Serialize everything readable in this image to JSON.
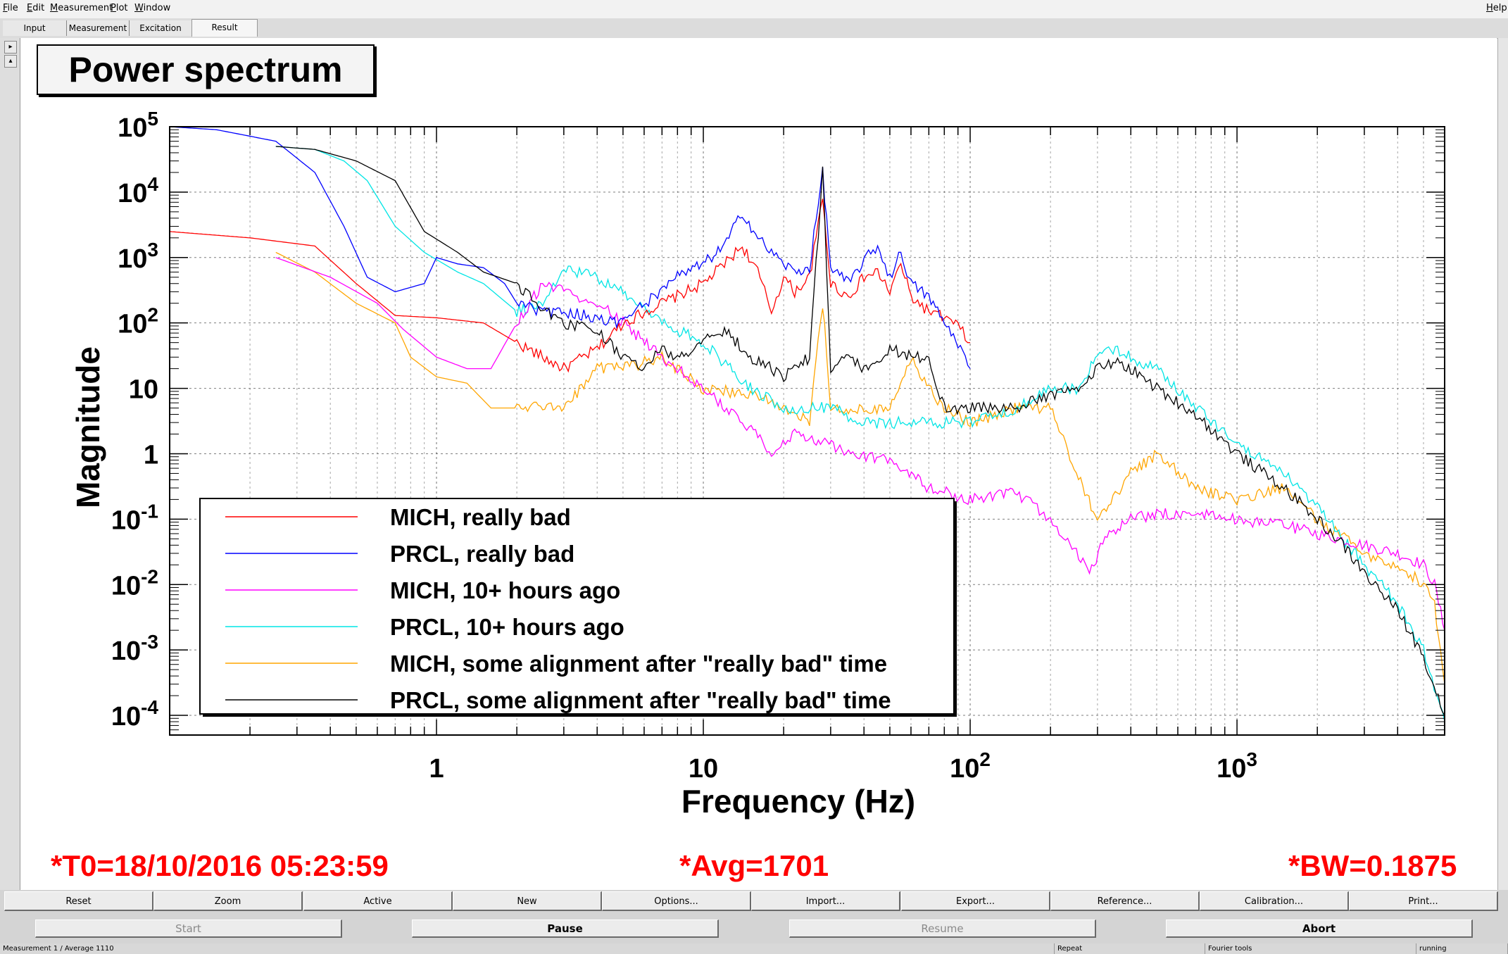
{
  "menubar": {
    "items": [
      "File",
      "Edit",
      "Measurement",
      "Plot",
      "Window"
    ],
    "help": "Help"
  },
  "tabs": [
    "Input",
    "Measurement",
    "Excitation",
    "Result"
  ],
  "active_tab": "Result",
  "plot_title": "Power spectrum",
  "info": {
    "t0": "*T0=18/10/2016 05:23:59",
    "avg": "*Avg=1701",
    "bw": "*BW=0.1875"
  },
  "toolbar_buttons": [
    "Reset",
    "Zoom",
    "Active",
    "New",
    "Options...",
    "Import...",
    "Export...",
    "Reference...",
    "Calibration...",
    "Print..."
  ],
  "control_buttons": [
    {
      "label": "Start",
      "enabled": false
    },
    {
      "label": "Pause",
      "enabled": true
    },
    {
      "label": "Resume",
      "enabled": false
    },
    {
      "label": "Abort",
      "enabled": true
    }
  ],
  "status": {
    "measurement": "Measurement 1 / Average 1110",
    "repeat": "Repeat",
    "tools": "Fourier tools",
    "state": "running"
  },
  "chart_data": {
    "type": "line",
    "title": "Power spectrum",
    "xlabel": "Frequency (Hz)",
    "ylabel": "Magnitude",
    "x_scale": "log",
    "y_scale": "log",
    "xlim": [
      0.1,
      6000
    ],
    "ylim": [
      5e-05,
      100000
    ],
    "x_ticks": [
      {
        "v": 1,
        "label": "1"
      },
      {
        "v": 10,
        "label": "10"
      },
      {
        "v": 100,
        "label": "10^2"
      },
      {
        "v": 1000,
        "label": "10^3"
      }
    ],
    "y_ticks": [
      {
        "v": 100000,
        "label": "10^5"
      },
      {
        "v": 10000,
        "label": "10^4"
      },
      {
        "v": 1000,
        "label": "10^3"
      },
      {
        "v": 100,
        "label": "10^2"
      },
      {
        "v": 10,
        "label": "10"
      },
      {
        "v": 1,
        "label": "1"
      },
      {
        "v": 0.1,
        "label": "10^-1"
      },
      {
        "v": 0.01,
        "label": "10^-2"
      },
      {
        "v": 0.001,
        "label": "10^-3"
      },
      {
        "v": 0.0001,
        "label": "10^-4"
      }
    ],
    "grid": true,
    "legend_position": "bottom-left",
    "series": [
      {
        "name": "MICH, really bad",
        "color": "#ff0000",
        "x": [
          0.1,
          0.2,
          0.35,
          0.5,
          0.7,
          1,
          1.5,
          2,
          2.5,
          3,
          4,
          5,
          7,
          10,
          12,
          14,
          16,
          18,
          20,
          22,
          25,
          28,
          30,
          35,
          40,
          45,
          50,
          55,
          60,
          70,
          80,
          90,
          100
        ],
        "y": [
          2500,
          2000,
          1500,
          400,
          130,
          120,
          100,
          50,
          30,
          20,
          40,
          100,
          200,
          400,
          800,
          1500,
          600,
          150,
          500,
          300,
          500,
          8000,
          400,
          250,
          500,
          600,
          300,
          800,
          250,
          150,
          120,
          90,
          50
        ]
      },
      {
        "name": "PRCL, really bad",
        "color": "#0000ff",
        "x": [
          0.1,
          0.15,
          0.25,
          0.35,
          0.45,
          0.55,
          0.7,
          0.9,
          1,
          1.2,
          1.5,
          1.8,
          2,
          2.5,
          3,
          4,
          5,
          6,
          7,
          8,
          10,
          12,
          14,
          16,
          18,
          20,
          22,
          25,
          28,
          30,
          35,
          40,
          45,
          50,
          55,
          60,
          70,
          80,
          90,
          100
        ],
        "y": [
          100000,
          90000,
          60000,
          20000,
          3000,
          500,
          300,
          400,
          1000,
          800,
          700,
          400,
          200,
          150,
          150,
          120,
          100,
          200,
          300,
          500,
          800,
          1500,
          5000,
          2000,
          1200,
          800,
          600,
          700,
          20000,
          700,
          400,
          900,
          1500,
          500,
          1200,
          400,
          250,
          100,
          50,
          20
        ]
      },
      {
        "name": "MICH, 10+ hours ago",
        "color": "#ff00ff",
        "x": [
          0.25,
          0.4,
          0.6,
          0.75,
          1,
          1.3,
          1.6,
          2,
          2.5,
          3,
          4,
          5,
          7,
          10,
          12,
          14,
          16,
          18,
          22,
          28,
          35,
          50,
          70,
          100,
          150,
          200,
          250,
          280,
          320,
          400,
          500,
          700,
          1000,
          1500,
          2000,
          3000,
          4000,
          5000,
          5500,
          6000
        ],
        "y": [
          1000,
          500,
          200,
          80,
          30,
          20,
          20,
          100,
          400,
          300,
          200,
          100,
          30,
          10,
          5,
          3,
          2,
          1,
          2,
          1.5,
          1,
          0.8,
          0.3,
          0.2,
          0.25,
          0.1,
          0.03,
          0.015,
          0.05,
          0.1,
          0.12,
          0.12,
          0.1,
          0.08,
          0.06,
          0.04,
          0.03,
          0.02,
          0.01,
          0.002
        ]
      },
      {
        "name": "PRCL, 10+ hours ago",
        "color": "#00e5e5",
        "x": [
          0.25,
          0.35,
          0.45,
          0.55,
          0.7,
          0.9,
          1.2,
          1.5,
          2,
          2.5,
          3,
          4,
          5,
          7,
          10,
          15,
          20,
          30,
          40,
          50,
          70,
          100,
          150,
          200,
          250,
          300,
          350,
          400,
          500,
          700,
          1000,
          1500,
          2000,
          2500,
          3000,
          4000,
          5000,
          6000
        ],
        "y": [
          50000,
          45000,
          30000,
          15000,
          3000,
          1200,
          600,
          400,
          150,
          200,
          700,
          500,
          300,
          100,
          50,
          10,
          5,
          5,
          3,
          3,
          3,
          3,
          5,
          10,
          10,
          30,
          40,
          30,
          20,
          5,
          1.5,
          0.5,
          0.15,
          0.05,
          0.02,
          0.005,
          0.001,
          8e-05
        ]
      },
      {
        "name": "MICH, some alignment after \"really bad\" time",
        "color": "#ffa500",
        "x": [
          0.25,
          0.35,
          0.5,
          0.7,
          0.8,
          1,
          1.3,
          1.6,
          2,
          2.5,
          3,
          4,
          5,
          7,
          10,
          15,
          20,
          25,
          28,
          30,
          40,
          50,
          60,
          70,
          80,
          100,
          150,
          200,
          250,
          300,
          400,
          500,
          700,
          1000,
          1500,
          2000,
          3000,
          4000,
          5000,
          5500,
          6000
        ],
        "y": [
          1200,
          600,
          200,
          100,
          30,
          15,
          12,
          5,
          5,
          5,
          5,
          20,
          20,
          30,
          10,
          8,
          5,
          3,
          200,
          5,
          5,
          5,
          30,
          10,
          5,
          3,
          5,
          5,
          0.5,
          0.1,
          0.5,
          1,
          0.3,
          0.2,
          0.3,
          0.1,
          0.03,
          0.02,
          0.01,
          0.005,
          0.0003
        ]
      },
      {
        "name": "PRCL, some alignment after \"really bad\" time",
        "color": "#000000",
        "x": [
          0.25,
          0.35,
          0.5,
          0.7,
          0.9,
          1.2,
          1.5,
          2,
          2.5,
          3,
          4,
          5,
          6,
          7,
          8,
          10,
          12,
          15,
          18,
          20,
          25,
          28,
          30,
          35,
          40,
          50,
          60,
          70,
          80,
          100,
          150,
          200,
          250,
          300,
          350,
          400,
          500,
          700,
          1000,
          1500,
          2000,
          2500,
          3000,
          4000,
          5000,
          6000
        ],
        "y": [
          50000,
          45000,
          30000,
          15000,
          2500,
          1200,
          600,
          400,
          150,
          100,
          80,
          30,
          20,
          40,
          30,
          50,
          80,
          30,
          20,
          15,
          30,
          20000,
          20,
          30,
          20,
          40,
          30,
          30,
          5,
          5,
          5,
          8,
          10,
          20,
          25,
          20,
          10,
          4,
          1,
          0.3,
          0.1,
          0.04,
          0.015,
          0.004,
          0.0008,
          0.0001
        ]
      }
    ]
  }
}
